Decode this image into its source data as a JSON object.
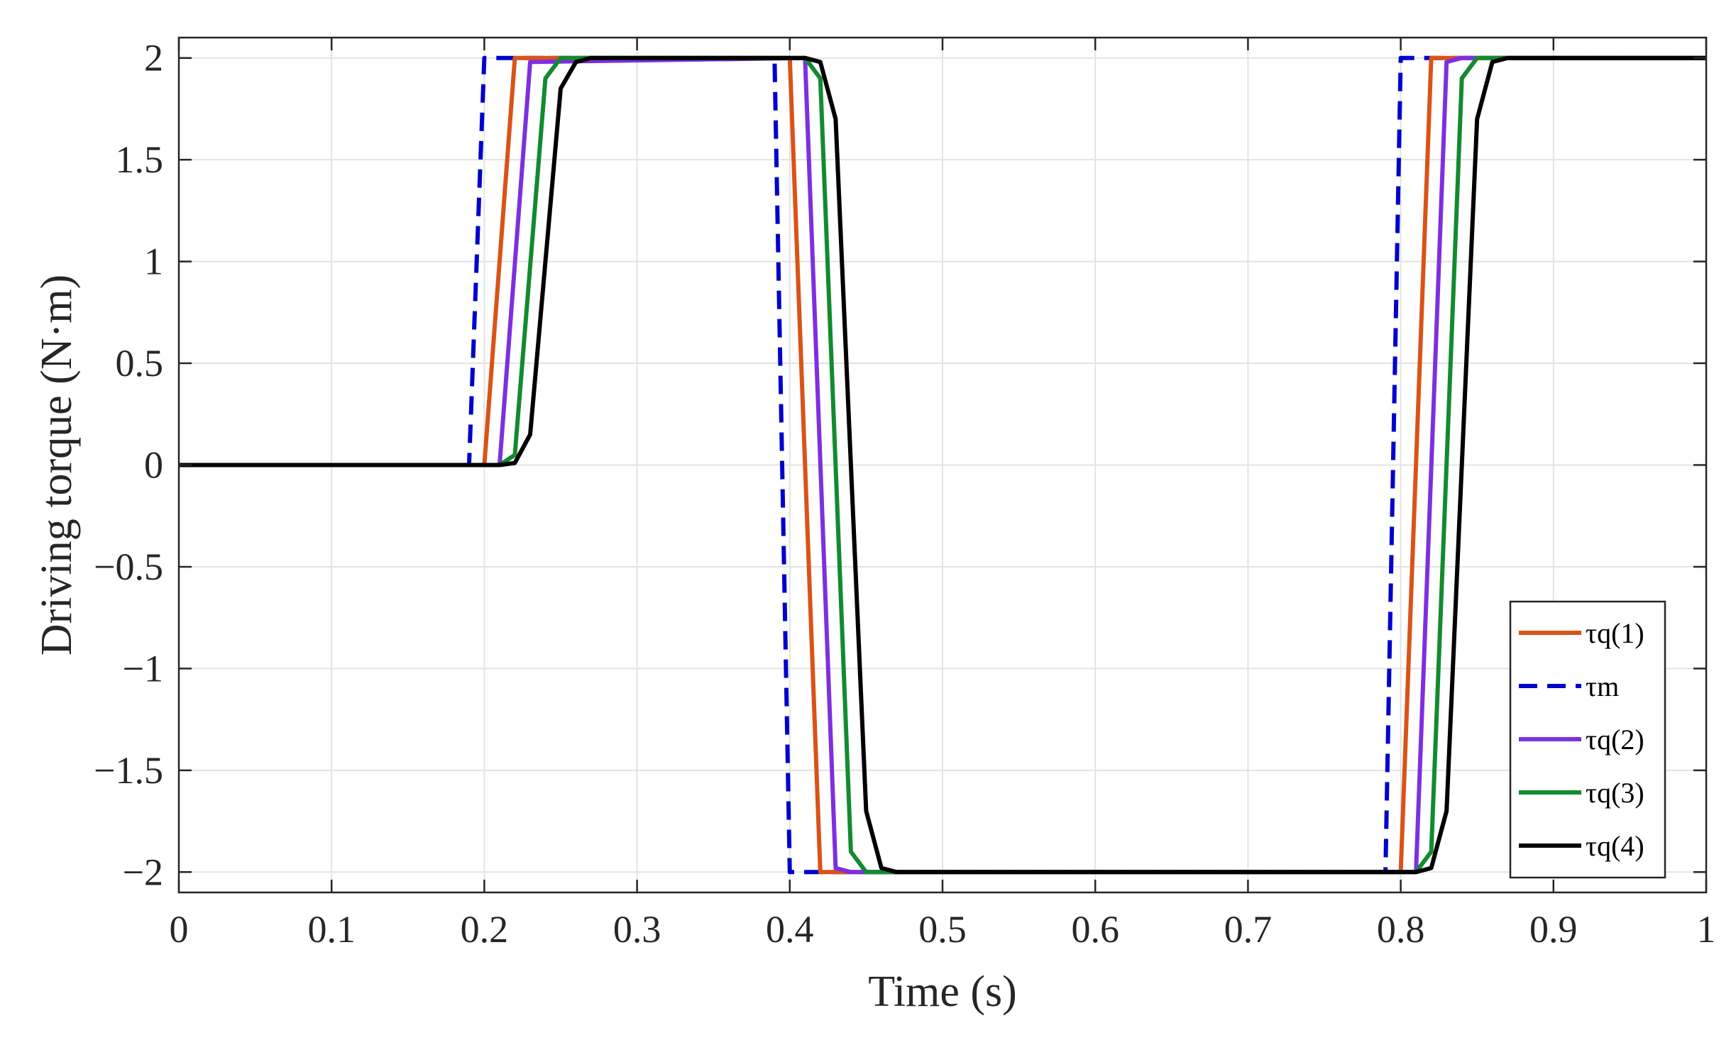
{
  "chart_data": {
    "type": "line",
    "title": "",
    "xlabel": "Time (s)",
    "ylabel": "Driving torque (N·m)",
    "xlim": [
      0,
      1
    ],
    "ylim": [
      -2.1,
      2.1
    ],
    "grid": true,
    "legend_position": "bottom-right",
    "x_ticks": [
      0,
      0.1,
      0.2,
      0.3,
      0.4,
      0.5,
      0.6,
      0.7,
      0.8,
      0.9,
      1
    ],
    "x_tick_labels": [
      "0",
      "0.1",
      "0.2",
      "0.3",
      "0.4",
      "0.5",
      "0.6",
      "0.7",
      "0.8",
      "0.9",
      "1"
    ],
    "y_ticks": [
      2,
      1.5,
      1,
      0.5,
      0,
      -0.5,
      -1,
      -1.5,
      -2
    ],
    "y_tick_labels": [
      "2",
      "1.5",
      "1",
      "0.5",
      "0",
      "-0.5",
      "-1",
      "-1.5",
      "-2"
    ],
    "series": [
      {
        "name": "τq(1)",
        "color": "#d95319",
        "dash": "solid",
        "x": [
          0,
          0.2,
          0.22,
          0.4,
          0.42,
          0.8,
          0.82,
          1
        ],
        "y": [
          0,
          0,
          2,
          2,
          -2,
          -2,
          2,
          2
        ]
      },
      {
        "name": "τm",
        "color": "#0000cc",
        "dash": "dashed",
        "x": [
          0,
          0.19,
          0.2,
          0.39,
          0.4,
          0.79,
          0.8,
          1
        ],
        "y": [
          0,
          0,
          2,
          2,
          -2,
          -2,
          2,
          2
        ]
      },
      {
        "name": "τq(2)",
        "color": "#7e2fdf",
        "dash": "solid",
        "x": [
          0,
          0.21,
          0.23,
          0.41,
          0.43,
          0.44,
          0.81,
          0.83,
          0.84,
          1
        ],
        "y": [
          0,
          0,
          1.98,
          2,
          -1.98,
          -2,
          -2,
          1.98,
          2,
          2
        ]
      },
      {
        "name": "τq(3)",
        "color": "#138a2f",
        "dash": "solid",
        "x": [
          0,
          0.21,
          0.22,
          0.24,
          0.25,
          0.41,
          0.42,
          0.44,
          0.45,
          0.81,
          0.82,
          0.84,
          0.85,
          1
        ],
        "y": [
          0,
          0,
          0.05,
          1.9,
          2,
          2,
          1.9,
          -1.9,
          -2,
          -2,
          -1.9,
          1.9,
          2,
          2
        ]
      },
      {
        "name": "τq(4)",
        "color": "#000000",
        "dash": "solid",
        "x": [
          0,
          0.21,
          0.22,
          0.23,
          0.25,
          0.26,
          0.27,
          0.41,
          0.42,
          0.43,
          0.45,
          0.46,
          0.47,
          0.81,
          0.82,
          0.83,
          0.85,
          0.86,
          0.87,
          1
        ],
        "y": [
          0,
          0,
          0.01,
          0.15,
          1.85,
          1.98,
          2,
          2,
          1.98,
          1.7,
          -1.7,
          -1.98,
          -2,
          -2,
          -1.98,
          -1.7,
          1.7,
          1.98,
          2,
          2
        ]
      }
    ]
  }
}
